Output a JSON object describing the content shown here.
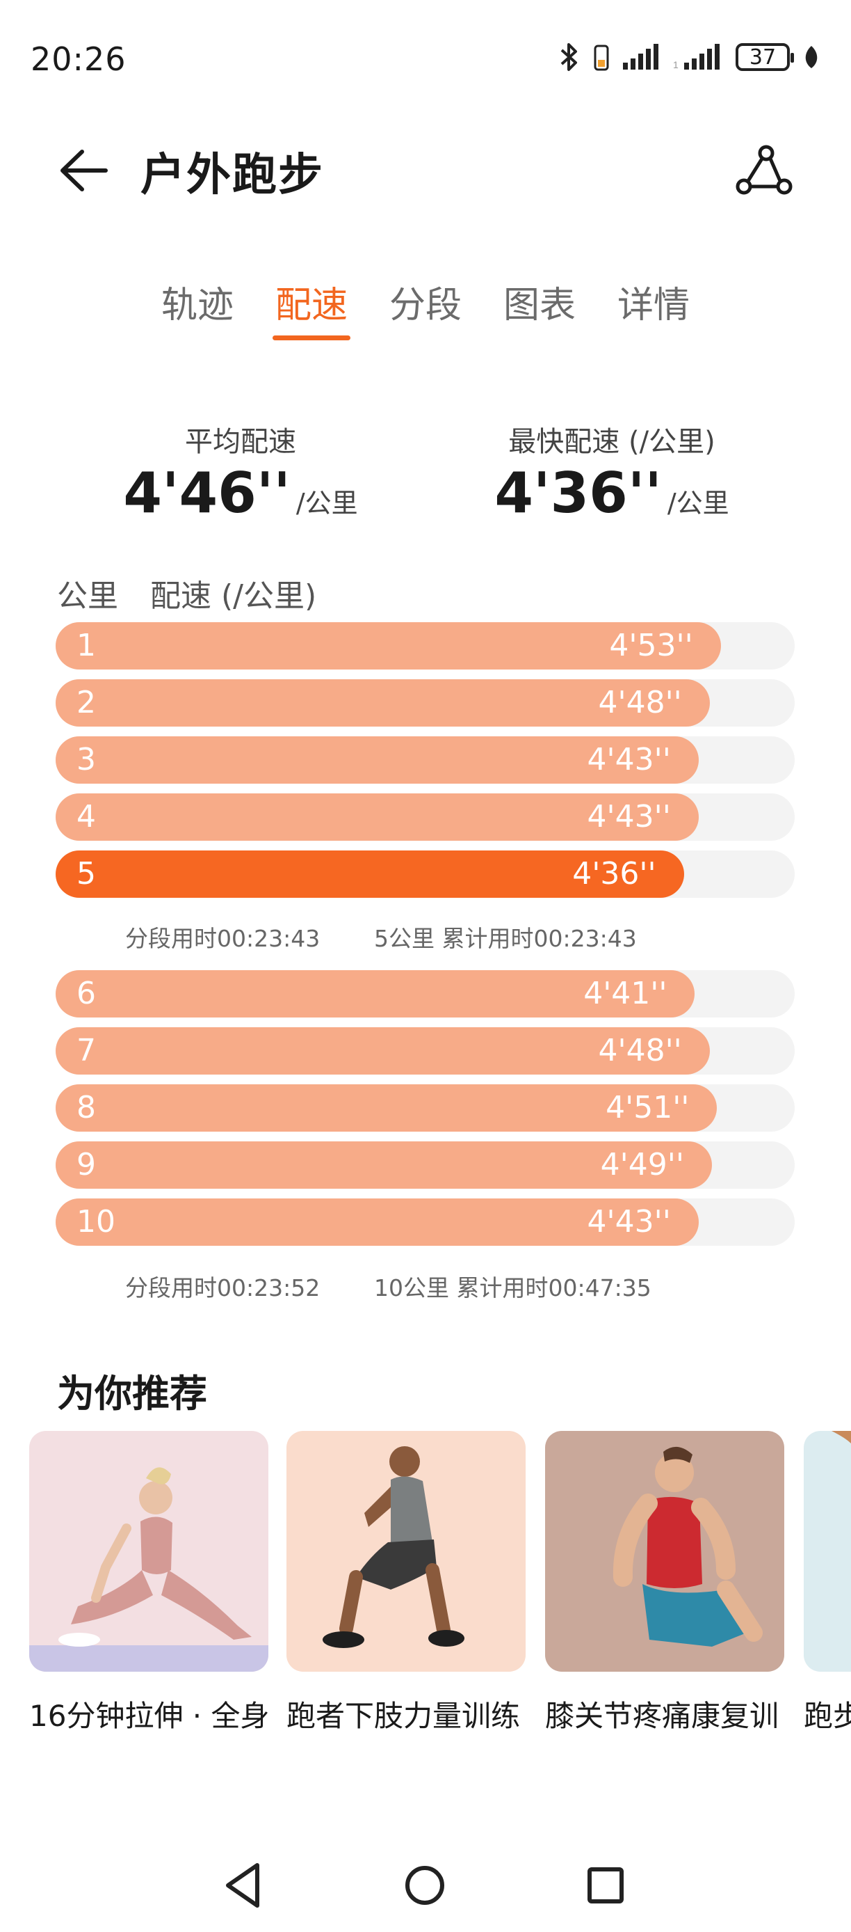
{
  "status": {
    "time": "20:26",
    "battery": "37"
  },
  "header": {
    "title": "户外跑步"
  },
  "tabs": [
    {
      "label": "轨迹",
      "active": false
    },
    {
      "label": "配速",
      "active": true
    },
    {
      "label": "分段",
      "active": false
    },
    {
      "label": "图表",
      "active": false
    },
    {
      "label": "详情",
      "active": false
    }
  ],
  "summary": {
    "avg": {
      "label": "平均配速",
      "value": "4'46''",
      "unit": "/公里"
    },
    "best": {
      "label": "最快配速 (/公里)",
      "value": "4'36''",
      "unit": "/公里"
    }
  },
  "list_header": {
    "col1": "公里",
    "col2": "配速 (/公里)"
  },
  "pace_rows": [
    {
      "km": "1",
      "pace": "4'53''",
      "fill": 0.9,
      "fastest": false
    },
    {
      "km": "2",
      "pace": "4'48''",
      "fill": 0.885,
      "fastest": false
    },
    {
      "km": "3",
      "pace": "4'43''",
      "fill": 0.87,
      "fastest": false
    },
    {
      "km": "4",
      "pace": "4'43''",
      "fill": 0.87,
      "fastest": false
    },
    {
      "km": "5",
      "pace": "4'36''",
      "fill": 0.85,
      "fastest": true
    },
    {
      "km": "6",
      "pace": "4'41''",
      "fill": 0.865,
      "fastest": false
    },
    {
      "km": "7",
      "pace": "4'48''",
      "fill": 0.885,
      "fastest": false
    },
    {
      "km": "8",
      "pace": "4'51''",
      "fill": 0.895,
      "fastest": false
    },
    {
      "km": "9",
      "pace": "4'49''",
      "fill": 0.888,
      "fastest": false
    },
    {
      "km": "10",
      "pace": "4'43''",
      "fill": 0.87,
      "fastest": false
    }
  ],
  "split_notes": [
    {
      "segment": "分段用时00:23:43",
      "cumulative": "5公里 累计用时00:23:43"
    },
    {
      "segment": "分段用时00:23:52",
      "cumulative": "10公里 累计用时00:47:35"
    }
  ],
  "recommend": {
    "title": "为你推荐",
    "cards": [
      {
        "label": "16分钟拉伸 · 全身",
        "bg": "#f3dfe2",
        "image": "stretch-woman"
      },
      {
        "label": "跑者下肢力量训练",
        "bg": "#fadccc",
        "image": "squat-man"
      },
      {
        "label": "膝关节疼痛康复训",
        "bg": "#c9a89a",
        "image": "kneel-man"
      },
      {
        "label": "跑步",
        "bg": "#dcecf0",
        "image": "partial"
      }
    ]
  },
  "colors": {
    "accent": "#f2661f",
    "bar": "#f7ab88",
    "bar_fastest": "#f66722",
    "track": "#f3f3f3"
  }
}
